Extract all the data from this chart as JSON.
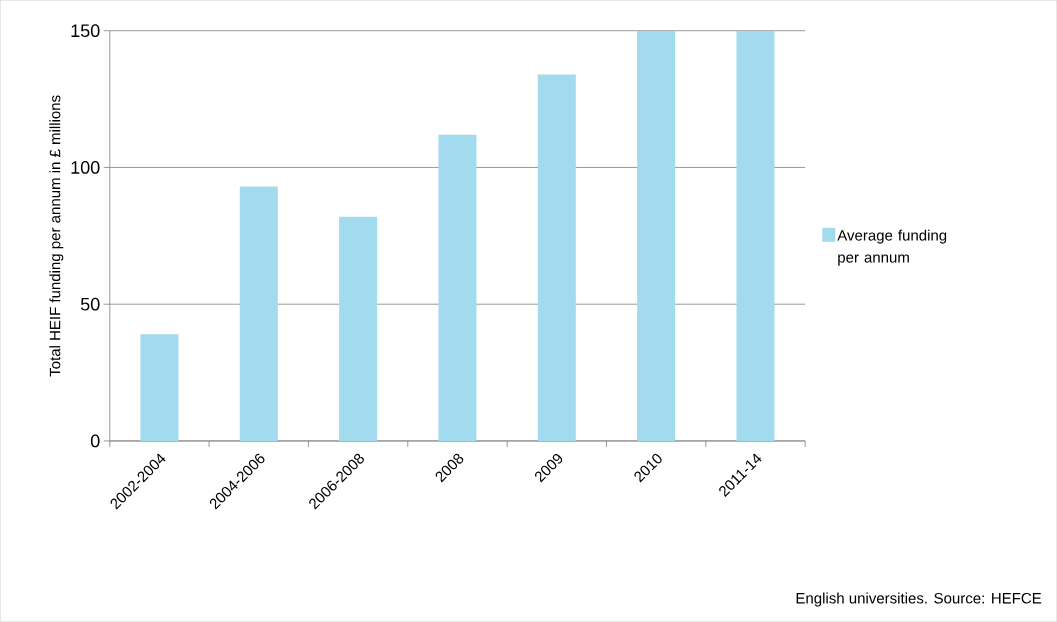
{
  "chart_data": {
    "type": "bar",
    "ylabel": "Total HEIF  funding per annum in £ millions",
    "categories": [
      "2002-2004",
      "2004-2006",
      "2006-2008",
      "2008",
      "2009",
      "2010",
      "2011-14"
    ],
    "series": [
      {
        "name": "Average funding per annum",
        "color": "#a2dbee",
        "values": [
          39,
          93,
          82,
          112,
          134,
          150,
          150
        ]
      }
    ],
    "ylim": [
      0,
      150
    ],
    "yticks": [
      0,
      50,
      100,
      150
    ],
    "grid": "y",
    "legend": "right",
    "annotations": [
      "English universities. Source: HEFCE"
    ]
  }
}
